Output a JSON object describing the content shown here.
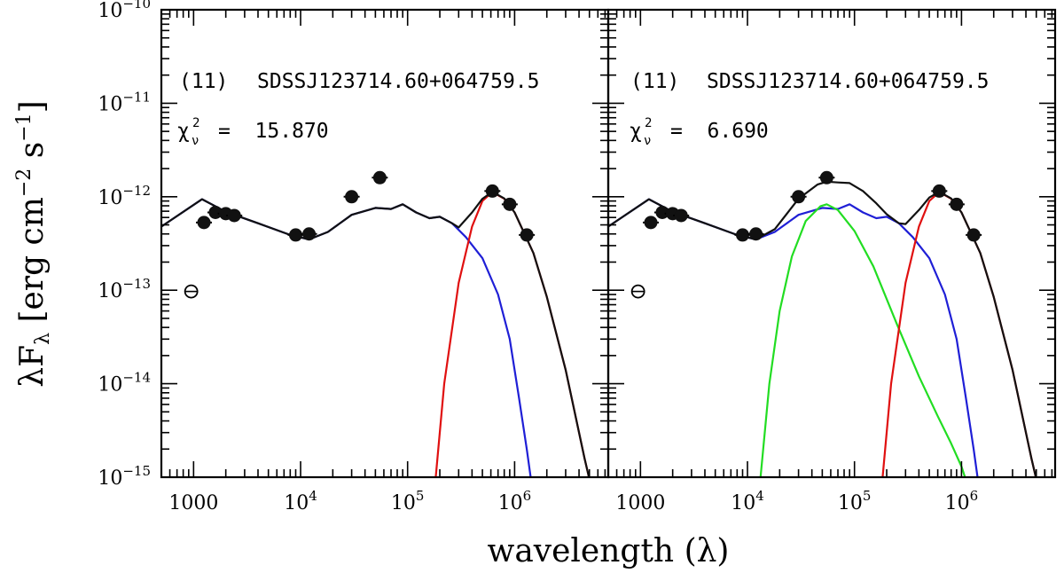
{
  "chart_data": {
    "type": "line",
    "x_scale": "log",
    "y_scale": "log",
    "xlim": [
      500,
      7500000
    ],
    "ylim": [
      1e-15,
      1e-10
    ],
    "xlabel": "wavelength (λ)",
    "ylabel": {
      "prefix": "λF",
      "sub": "λ",
      "units_open": " [erg cm",
      "sup1": "−2",
      "units_mid": " s",
      "sup2": "−1",
      "units_close": "]"
    },
    "x_ticks": [
      {
        "value": 1000,
        "base": "1000",
        "exp": ""
      },
      {
        "value": 10000,
        "base": "10",
        "exp": "4"
      },
      {
        "value": 100000,
        "base": "10",
        "exp": "5"
      },
      {
        "value": 1000000,
        "base": "10",
        "exp": "6"
      }
    ],
    "y_ticks": [
      {
        "value": 1e-10,
        "base": "10",
        "exp": "−10"
      },
      {
        "value": 1e-11,
        "base": "10",
        "exp": "−11"
      },
      {
        "value": 1e-12,
        "base": "10",
        "exp": "−12"
      },
      {
        "value": 1e-13,
        "base": "10",
        "exp": "−13"
      },
      {
        "value": 1e-14,
        "base": "10",
        "exp": "−14"
      },
      {
        "value": 1e-15,
        "base": "10",
        "exp": "−15"
      }
    ],
    "panels": [
      {
        "id": "left",
        "label": "(11)",
        "name": "SDSSJ123714.60+064759.5",
        "chi_symbol": "χ",
        "chi_sup": "2",
        "chi_sub": "ν",
        "chi_value": "=  15.870",
        "points": [
          {
            "x": 1250,
            "y": 5.3e-13
          },
          {
            "x": 1600,
            "y": 6.8e-13
          },
          {
            "x": 2000,
            "y": 6.6e-13
          },
          {
            "x": 2400,
            "y": 6.3e-13
          },
          {
            "x": 9000,
            "y": 3.9e-13
          },
          {
            "x": 12000,
            "y": 4e-13
          },
          {
            "x": 30000,
            "y": 1e-12
          },
          {
            "x": 55000,
            "y": 1.6e-12
          },
          {
            "x": 620000,
            "y": 1.15e-12
          },
          {
            "x": 900000,
            "y": 8.3e-13
          },
          {
            "x": 1300000,
            "y": 3.9e-13
          }
        ],
        "open_points": [
          {
            "x": 950,
            "y": 9.7e-14
          }
        ],
        "series": [
          {
            "name": "blue",
            "color": "#1f1fd6",
            "points": [
              [
                500,
                4.8e-13
              ],
              [
                1200,
                9.4e-13
              ],
              [
                2000,
                6.9e-13
              ],
              [
                4000,
                5.2e-13
              ],
              [
                8000,
                3.9e-13
              ],
              [
                12000,
                3.5e-13
              ],
              [
                18000,
                4.2e-13
              ],
              [
                30000,
                6.4e-13
              ],
              [
                50000,
                7.6e-13
              ],
              [
                70000,
                7.4e-13
              ],
              [
                90000,
                8.3e-13
              ],
              [
                120000,
                6.8e-13
              ],
              [
                160000,
                5.9e-13
              ],
              [
                200000,
                6.1e-13
              ],
              [
                260000,
                5.2e-13
              ],
              [
                350000,
                3.7e-13
              ],
              [
                500000,
                2.2e-13
              ],
              [
                700000,
                9e-14
              ],
              [
                900000,
                3e-14
              ],
              [
                1100000,
                7e-15
              ],
              [
                1300000,
                2e-15
              ],
              [
                1450000,
                8e-16
              ]
            ]
          },
          {
            "name": "red",
            "color": "#e01010",
            "points": [
              [
                180000,
                8e-16
              ],
              [
                220000,
                1e-14
              ],
              [
                300000,
                1.2e-13
              ],
              [
                400000,
                4.8e-13
              ],
              [
                500000,
                9e-13
              ],
              [
                620000,
                1.12e-12
              ],
              [
                800000,
                9.5e-13
              ],
              [
                1000000,
                6.8e-13
              ],
              [
                1500000,
                2.5e-13
              ],
              [
                2000000,
                8.5e-14
              ],
              [
                3000000,
                1.4e-14
              ],
              [
                4500000,
                1.6e-15
              ],
              [
                5500000,
                6e-16
              ]
            ]
          },
          {
            "name": "total",
            "color": "#111111",
            "points": [
              [
                500,
                4.8e-13
              ],
              [
                1200,
                9.4e-13
              ],
              [
                2000,
                6.9e-13
              ],
              [
                4000,
                5.2e-13
              ],
              [
                8000,
                3.9e-13
              ],
              [
                12000,
                3.5e-13
              ],
              [
                18000,
                4.2e-13
              ],
              [
                30000,
                6.4e-13
              ],
              [
                50000,
                7.6e-13
              ],
              [
                70000,
                7.4e-13
              ],
              [
                90000,
                8.3e-13
              ],
              [
                120000,
                6.8e-13
              ],
              [
                160000,
                5.9e-13
              ],
              [
                200000,
                6.1e-13
              ],
              [
                260000,
                5.2e-13
              ],
              [
                300000,
                4.7e-13
              ],
              [
                400000,
                6.8e-13
              ],
              [
                500000,
                9.5e-13
              ],
              [
                620000,
                1.13e-12
              ],
              [
                800000,
                9.6e-13
              ],
              [
                1000000,
                6.8e-13
              ],
              [
                1500000,
                2.5e-13
              ],
              [
                2000000,
                8.5e-14
              ],
              [
                3000000,
                1.4e-14
              ],
              [
                4500000,
                1.6e-15
              ],
              [
                5500000,
                6e-16
              ]
            ]
          }
        ]
      },
      {
        "id": "right",
        "label": "(11)",
        "name": "SDSSJ123714.60+064759.5",
        "chi_symbol": "χ",
        "chi_sup": "2",
        "chi_sub": "ν",
        "chi_value": "=  6.690",
        "points": [
          {
            "x": 1250,
            "y": 5.3e-13
          },
          {
            "x": 1600,
            "y": 6.8e-13
          },
          {
            "x": 2000,
            "y": 6.6e-13
          },
          {
            "x": 2400,
            "y": 6.3e-13
          },
          {
            "x": 9000,
            "y": 3.9e-13
          },
          {
            "x": 12000,
            "y": 4e-13
          },
          {
            "x": 30000,
            "y": 1e-12
          },
          {
            "x": 55000,
            "y": 1.6e-12
          },
          {
            "x": 620000,
            "y": 1.15e-12
          },
          {
            "x": 900000,
            "y": 8.3e-13
          },
          {
            "x": 1300000,
            "y": 3.9e-13
          }
        ],
        "open_points": [
          {
            "x": 950,
            "y": 9.7e-14
          }
        ],
        "series": [
          {
            "name": "blue",
            "color": "#1f1fd6",
            "points": [
              [
                500,
                4.8e-13
              ],
              [
                1200,
                9.4e-13
              ],
              [
                2000,
                6.9e-13
              ],
              [
                4000,
                5.2e-13
              ],
              [
                8000,
                3.9e-13
              ],
              [
                12000,
                3.5e-13
              ],
              [
                18000,
                4.2e-13
              ],
              [
                30000,
                6.4e-13
              ],
              [
                50000,
                7.6e-13
              ],
              [
                70000,
                7.4e-13
              ],
              [
                90000,
                8.3e-13
              ],
              [
                120000,
                6.8e-13
              ],
              [
                160000,
                5.9e-13
              ],
              [
                200000,
                6.1e-13
              ],
              [
                260000,
                5.2e-13
              ],
              [
                350000,
                3.7e-13
              ],
              [
                500000,
                2.2e-13
              ],
              [
                700000,
                9e-14
              ],
              [
                900000,
                3e-14
              ],
              [
                1100000,
                7e-15
              ],
              [
                1300000,
                2e-15
              ],
              [
                1450000,
                8e-16
              ]
            ]
          },
          {
            "name": "green",
            "color": "#22dd22",
            "points": [
              [
                13000,
                8e-16
              ],
              [
                16000,
                1e-14
              ],
              [
                20000,
                6e-14
              ],
              [
                26000,
                2.3e-13
              ],
              [
                35000,
                5.5e-13
              ],
              [
                48000,
                7.9e-13
              ],
              [
                55000,
                8.3e-13
              ],
              [
                70000,
                7.2e-13
              ],
              [
                100000,
                4.3e-13
              ],
              [
                150000,
                1.8e-13
              ],
              [
                250000,
                4.3e-14
              ],
              [
                400000,
                1.2e-14
              ],
              [
                600000,
                4.5e-15
              ],
              [
                800000,
                2.3e-15
              ],
              [
                1000000,
                1.3e-15
              ],
              [
                1150000,
                8e-16
              ]
            ]
          },
          {
            "name": "red",
            "color": "#e01010",
            "points": [
              [
                180000,
                8e-16
              ],
              [
                220000,
                1e-14
              ],
              [
                300000,
                1.2e-13
              ],
              [
                400000,
                4.8e-13
              ],
              [
                500000,
                9e-13
              ],
              [
                620000,
                1.12e-12
              ],
              [
                800000,
                9.5e-13
              ],
              [
                1000000,
                6.8e-13
              ],
              [
                1500000,
                2.5e-13
              ],
              [
                2000000,
                8.5e-14
              ],
              [
                3000000,
                1.4e-14
              ],
              [
                4500000,
                1.6e-15
              ],
              [
                5500000,
                6e-16
              ]
            ]
          },
          {
            "name": "total",
            "color": "#111111",
            "points": [
              [
                500,
                4.8e-13
              ],
              [
                1200,
                9.4e-13
              ],
              [
                2000,
                6.9e-13
              ],
              [
                4000,
                5.2e-13
              ],
              [
                8000,
                3.9e-13
              ],
              [
                12000,
                3.5e-13
              ],
              [
                18000,
                4.5e-13
              ],
              [
                30000,
                9.5e-13
              ],
              [
                45000,
                1.35e-12
              ],
              [
                55000,
                1.45e-12
              ],
              [
                70000,
                1.42e-12
              ],
              [
                90000,
                1.4e-12
              ],
              [
                120000,
                1.15e-12
              ],
              [
                160000,
                8.5e-13
              ],
              [
                200000,
                6.5e-13
              ],
              [
                260000,
                5.2e-13
              ],
              [
                300000,
                5.1e-13
              ],
              [
                400000,
                7.2e-13
              ],
              [
                500000,
                9.8e-13
              ],
              [
                620000,
                1.13e-12
              ],
              [
                800000,
                9.6e-13
              ],
              [
                1000000,
                6.8e-13
              ],
              [
                1500000,
                2.5e-13
              ],
              [
                2000000,
                8.5e-14
              ],
              [
                3000000,
                1.4e-14
              ],
              [
                4500000,
                1.6e-15
              ],
              [
                5500000,
                6e-16
              ]
            ]
          }
        ]
      }
    ]
  }
}
